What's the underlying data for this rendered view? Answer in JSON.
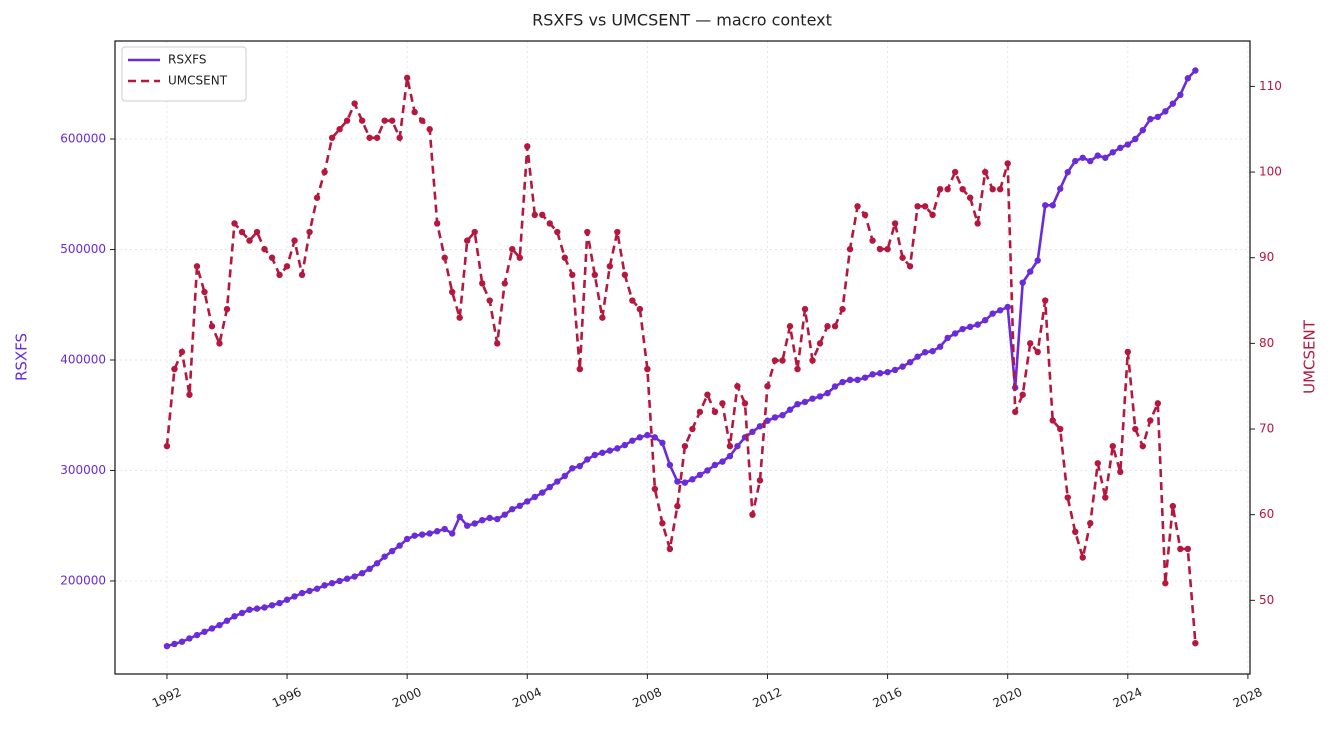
{
  "chart_data": {
    "type": "line",
    "title": "RSXFS vs UMCSENT — macro context",
    "ylabel": "RSXFS",
    "y2label": "UMCSENT",
    "xlim": [
      1990.27,
      2028.07
    ],
    "xticks": [
      1992,
      1996,
      2000,
      2004,
      2008,
      2012,
      2016,
      2020,
      2024,
      2028
    ],
    "ylim": [
      115800,
      688700
    ],
    "yticks": [
      200000,
      300000,
      400000,
      500000,
      600000
    ],
    "y2lim": [
      41.4,
      115.3
    ],
    "y2ticks": [
      50,
      60,
      70,
      80,
      90,
      100,
      110
    ],
    "grid": true,
    "legend": "upper left",
    "x": [
      1992,
      1992.25,
      1992.5,
      1992.75,
      1993,
      1993.25,
      1993.5,
      1993.75,
      1994,
      1994.25,
      1994.5,
      1994.75,
      1995,
      1995.25,
      1995.5,
      1995.75,
      1996,
      1996.25,
      1996.5,
      1996.75,
      1997,
      1997.25,
      1997.5,
      1997.75,
      1998,
      1998.25,
      1998.5,
      1998.75,
      1999,
      1999.25,
      1999.5,
      1999.75,
      2000,
      2000.25,
      2000.5,
      2000.75,
      2001,
      2001.25,
      2001.5,
      2001.75,
      2002,
      2002.25,
      2002.5,
      2002.75,
      2003,
      2003.25,
      2003.5,
      2003.75,
      2004,
      2004.25,
      2004.5,
      2004.75,
      2005,
      2005.25,
      2005.5,
      2005.75,
      2006,
      2006.25,
      2006.5,
      2006.75,
      2007,
      2007.25,
      2007.5,
      2007.75,
      2008,
      2008.25,
      2008.5,
      2008.75,
      2009,
      2009.25,
      2009.5,
      2009.75,
      2010,
      2010.25,
      2010.5,
      2010.75,
      2011,
      2011.25,
      2011.5,
      2011.75,
      2012,
      2012.25,
      2012.5,
      2012.75,
      2013,
      2013.25,
      2013.5,
      2013.75,
      2014,
      2014.25,
      2014.5,
      2014.75,
      2015,
      2015.25,
      2015.5,
      2015.75,
      2016,
      2016.25,
      2016.5,
      2016.75,
      2017,
      2017.25,
      2017.5,
      2017.75,
      2018,
      2018.25,
      2018.5,
      2018.75,
      2019,
      2019.25,
      2019.5,
      2019.75,
      2020,
      2020.25,
      2020.5,
      2020.75,
      2021,
      2021.25,
      2021.5,
      2021.75,
      2022,
      2022.25,
      2022.5,
      2022.75,
      2023,
      2023.25,
      2023.5,
      2023.75,
      2024,
      2024.25,
      2024.5,
      2024.75,
      2025,
      2025.25,
      2025.5,
      2025.75,
      2026,
      2026.25
    ],
    "series": [
      {
        "name": "RSXFS",
        "color": "#6a2bd9",
        "linestyle": "solid",
        "axis": "y",
        "values": [
          141000,
          143000,
          145000,
          148000,
          151000,
          154000,
          157000,
          160000,
          164000,
          168000,
          171000,
          174000,
          175000,
          176000,
          178000,
          180000,
          183000,
          186000,
          189000,
          191000,
          193000,
          196000,
          198000,
          200000,
          202000,
          204000,
          207000,
          211000,
          216000,
          222000,
          227000,
          232000,
          238000,
          241000,
          242000,
          243000,
          245000,
          247000,
          243000,
          258000,
          250000,
          252000,
          255000,
          257000,
          256000,
          260000,
          265000,
          268000,
          272000,
          276000,
          280000,
          285000,
          290000,
          295000,
          302000,
          304000,
          310000,
          314000,
          316000,
          318000,
          320000,
          323000,
          327000,
          330000,
          332000,
          330000,
          325000,
          305000,
          290000,
          289000,
          292000,
          296000,
          300000,
          305000,
          308000,
          313000,
          322000,
          330000,
          335000,
          340000,
          345000,
          348000,
          350000,
          355000,
          360000,
          362000,
          365000,
          367000,
          370000,
          376000,
          380000,
          382000,
          382000,
          384000,
          387000,
          388000,
          389000,
          391000,
          394000,
          398000,
          403000,
          407000,
          408000,
          412000,
          420000,
          424000,
          428000,
          430000,
          432000,
          436000,
          442000,
          445000,
          448000,
          375000,
          470000,
          480000,
          490000,
          540000,
          540000,
          555000,
          570000,
          580000,
          583000,
          580000,
          585000,
          583000,
          588000,
          592000,
          595000,
          600000,
          608000,
          618000,
          620000,
          625000,
          632000,
          640000,
          655000,
          662000
        ]
      },
      {
        "name": "UMCSENT",
        "color": "#b5173f",
        "linestyle": "dashed",
        "axis": "y2",
        "values": [
          68,
          77,
          79,
          74,
          89,
          86,
          82,
          80,
          84,
          94,
          93,
          92,
          93,
          91,
          90,
          88,
          89,
          92,
          88,
          93,
          97,
          100,
          104,
          105,
          106,
          108,
          106,
          104,
          104,
          106,
          106,
          104,
          111,
          107,
          106,
          105,
          94,
          90,
          86,
          83,
          92,
          93,
          87,
          85,
          80,
          87,
          91,
          90,
          103,
          95,
          95,
          94,
          93,
          90,
          88,
          77,
          93,
          88,
          83,
          89,
          93,
          88,
          85,
          84,
          77,
          63,
          59,
          56,
          61,
          68,
          70,
          72,
          74,
          72,
          73,
          68,
          75,
          73,
          60,
          64,
          75,
          78,
          78,
          82,
          77,
          84,
          78,
          80,
          82,
          82,
          84,
          91,
          96,
          95,
          92,
          91,
          91,
          94,
          90,
          89,
          96,
          96,
          95,
          98,
          98,
          100,
          98,
          97,
          94,
          100,
          98,
          98,
          101,
          72,
          74,
          80,
          79,
          85,
          71,
          70,
          62,
          58,
          55,
          59,
          66,
          62,
          68,
          65,
          79,
          70,
          68,
          71,
          73,
          52,
          61,
          56,
          56,
          45
        ]
      }
    ]
  }
}
